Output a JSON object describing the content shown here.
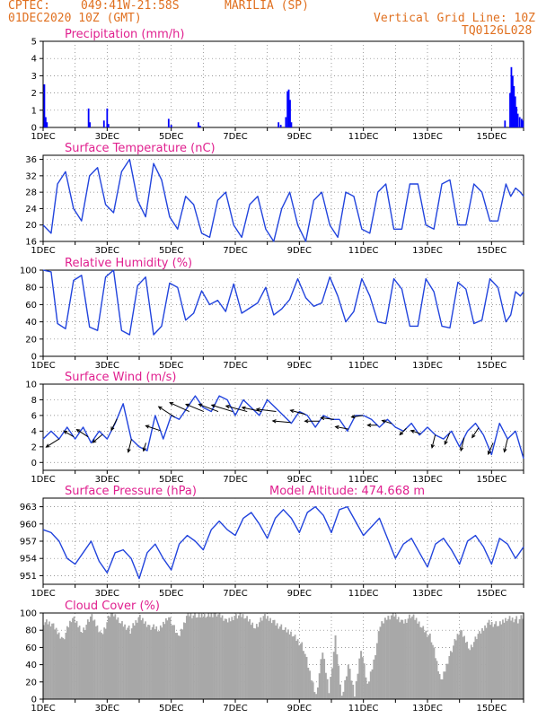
{
  "header": {
    "source": "CPTEC:",
    "coords": "049:41W-21:58S",
    "city": "MARILIA (SP)",
    "datetime": "01DEC2020 10Z (GMT)",
    "grid_line": "Vertical Grid Line: 10Z",
    "code": "TQ0126L028"
  },
  "chart_data": [
    {
      "id": "precip",
      "type": "bar",
      "title": "Precipitation (mm/h)",
      "ylim": [
        0,
        5
      ],
      "yticks": [
        0,
        1,
        2,
        3,
        4,
        5
      ],
      "xticks": [
        "1DEC",
        "3DEC",
        "5DEC",
        "7DEC",
        "9DEC",
        "11DEC",
        "13DEC",
        "15DEC"
      ],
      "x_range_days": [
        0,
        15.0
      ],
      "color": "#0000ff",
      "bars": [
        [
          0.04,
          2.5
        ],
        [
          0.08,
          0.6
        ],
        [
          0.12,
          0.3
        ],
        [
          1.42,
          1.1
        ],
        [
          1.46,
          0.3
        ],
        [
          1.9,
          0.4
        ],
        [
          2.0,
          1.1
        ],
        [
          2.04,
          0.2
        ],
        [
          3.92,
          0.5
        ],
        [
          4.0,
          0.15
        ],
        [
          4.85,
          0.3
        ],
        [
          4.9,
          0.1
        ],
        [
          7.35,
          0.3
        ],
        [
          7.42,
          0.15
        ],
        [
          7.58,
          0.6
        ],
        [
          7.63,
          2.1
        ],
        [
          7.67,
          2.2
        ],
        [
          7.71,
          1.6
        ],
        [
          7.75,
          0.3
        ],
        [
          14.42,
          0.4
        ],
        [
          14.58,
          2.0
        ],
        [
          14.62,
          3.5
        ],
        [
          14.66,
          3.0
        ],
        [
          14.7,
          2.4
        ],
        [
          14.74,
          1.8
        ],
        [
          14.78,
          1.2
        ],
        [
          14.82,
          0.8
        ],
        [
          14.88,
          0.6
        ],
        [
          14.94,
          0.5
        ],
        [
          14.98,
          0.4
        ]
      ]
    },
    {
      "id": "temp",
      "type": "line",
      "title": "Surface Temperature (nC)",
      "ylim": [
        16,
        37
      ],
      "yticks": [
        16,
        20,
        24,
        28,
        32,
        36
      ],
      "xticks": [
        "1DEC",
        "3DEC",
        "5DEC",
        "7DEC",
        "9DEC",
        "11DEC",
        "13DEC",
        "15DEC"
      ],
      "color": "#2244dd",
      "series": [
        {
          "x": [
            0,
            0.25,
            0.45,
            0.7,
            0.95,
            1.2,
            1.45,
            1.7,
            1.95,
            2.2,
            2.45,
            2.7,
            2.95,
            3.2,
            3.45,
            3.7,
            3.95,
            4.2,
            4.45,
            4.7,
            4.95,
            5.2,
            5.45,
            5.7,
            5.95,
            6.2,
            6.45,
            6.7,
            6.95,
            7.2,
            7.45,
            7.7,
            7.95,
            8.2,
            8.45,
            8.7,
            8.95,
            9.2,
            9.45,
            9.7,
            9.95,
            10.2,
            10.45,
            10.7,
            10.95,
            11.2,
            11.45,
            11.7,
            11.95,
            12.2,
            12.45,
            12.7,
            12.95,
            13.2,
            13.45,
            13.7,
            13.95,
            14.2,
            14.45,
            14.6,
            14.75,
            14.9,
            15.0
          ],
          "y": [
            20,
            18,
            30,
            33,
            24,
            21,
            32,
            34,
            25,
            23,
            33,
            36,
            26,
            22,
            35,
            31,
            22,
            19,
            27,
            25,
            18,
            17,
            26,
            28,
            20,
            17,
            25,
            27,
            19,
            16,
            24,
            28,
            20,
            16,
            26,
            28,
            20,
            17,
            28,
            27,
            19,
            18,
            28,
            30,
            19,
            19,
            30,
            30,
            20,
            19,
            30,
            31,
            20,
            20,
            30,
            28,
            21,
            21,
            30,
            27,
            29,
            28,
            27
          ]
        }
      ]
    },
    {
      "id": "rh",
      "type": "line",
      "title": "Relative Humidity (%)",
      "ylim": [
        0,
        100
      ],
      "yticks": [
        0,
        20,
        40,
        60,
        80,
        100
      ],
      "xticks": [
        "1DEC",
        "3DEC",
        "5DEC",
        "7DEC",
        "9DEC",
        "11DEC",
        "13DEC",
        "15DEC"
      ],
      "color": "#2244dd",
      "series": [
        {
          "x": [
            0,
            0.25,
            0.45,
            0.7,
            0.95,
            1.2,
            1.45,
            1.7,
            1.95,
            2.2,
            2.45,
            2.7,
            2.95,
            3.2,
            3.45,
            3.7,
            3.95,
            4.2,
            4.45,
            4.7,
            4.95,
            5.2,
            5.45,
            5.7,
            5.95,
            6.2,
            6.45,
            6.7,
            6.95,
            7.2,
            7.45,
            7.7,
            7.95,
            8.2,
            8.45,
            8.7,
            8.95,
            9.2,
            9.45,
            9.7,
            9.95,
            10.2,
            10.45,
            10.7,
            10.95,
            11.2,
            11.45,
            11.7,
            11.95,
            12.2,
            12.45,
            12.7,
            12.95,
            13.2,
            13.45,
            13.7,
            13.95,
            14.2,
            14.45,
            14.6,
            14.75,
            14.9,
            15.0
          ],
          "y": [
            100,
            98,
            38,
            32,
            88,
            94,
            34,
            30,
            92,
            100,
            30,
            25,
            82,
            92,
            25,
            35,
            85,
            80,
            42,
            50,
            76,
            60,
            65,
            52,
            84,
            50,
            56,
            62,
            80,
            48,
            55,
            66,
            90,
            68,
            58,
            62,
            92,
            70,
            40,
            52,
            90,
            70,
            40,
            38,
            90,
            78,
            35,
            35,
            90,
            75,
            35,
            33,
            86,
            78,
            38,
            42,
            90,
            80,
            40,
            48,
            75,
            70,
            75
          ]
        }
      ]
    },
    {
      "id": "wind",
      "type": "line",
      "title": "Surface Wind (m/s)",
      "ylim": [
        -1,
        10
      ],
      "yticks": [
        0,
        2,
        4,
        6,
        8,
        10
      ],
      "xticks": [
        "1DEC",
        "3DEC",
        "5DEC",
        "7DEC",
        "9DEC",
        "11DEC",
        "13DEC",
        "15DEC"
      ],
      "color": "#2244dd",
      "series": [
        {
          "x": [
            0,
            0.25,
            0.5,
            0.75,
            1.0,
            1.25,
            1.5,
            1.75,
            2.0,
            2.25,
            2.5,
            2.75,
            3.0,
            3.25,
            3.5,
            3.75,
            4.0,
            4.25,
            4.5,
            4.75,
            5.0,
            5.25,
            5.5,
            5.75,
            6.0,
            6.25,
            6.5,
            6.75,
            7.0,
            7.25,
            7.5,
            7.75,
            8.0,
            8.25,
            8.5,
            8.75,
            9.0,
            9.25,
            9.5,
            9.75,
            10.0,
            10.25,
            10.5,
            10.75,
            11.0,
            11.25,
            11.5,
            11.75,
            12.0,
            12.25,
            12.5,
            12.75,
            13.0,
            13.25,
            13.5,
            13.75,
            14.0,
            14.25,
            14.5,
            14.75,
            15.0
          ],
          "y": [
            3,
            4,
            3,
            4.5,
            3,
            4.5,
            2.5,
            4,
            3,
            5,
            7.5,
            3,
            2,
            1.5,
            6,
            3,
            6,
            5.5,
            7,
            8.5,
            7,
            6.5,
            8.5,
            8,
            6,
            8,
            7,
            6,
            8,
            7,
            6,
            5,
            6.5,
            6,
            4.5,
            6,
            5.5,
            5.5,
            4,
            6,
            6,
            5.5,
            4.5,
            5.5,
            4.5,
            4,
            5,
            3.5,
            4.5,
            3.5,
            3,
            4,
            2,
            4,
            5,
            3.5,
            1,
            5,
            3,
            4,
            0.5
          ]
        }
      ],
      "arrows_uv": [
        [
          -1.6,
          -1.0
        ],
        [
          -1.2,
          0.7
        ],
        [
          -1.4,
          0.9
        ],
        [
          -1.2,
          -1.0
        ],
        [
          -0.7,
          -1.4
        ],
        [
          -0.4,
          -1.6
        ],
        [
          -0.3,
          -1.0
        ],
        [
          -1.8,
          0.6
        ],
        [
          -2.0,
          1.3
        ],
        [
          -2.4,
          1.1
        ],
        [
          -2.2,
          0.9
        ],
        [
          -2.4,
          0.9
        ],
        [
          -2.6,
          0.8
        ],
        [
          -2.6,
          0.7
        ],
        [
          -2.4,
          0.5
        ],
        [
          -2.4,
          0.3
        ],
        [
          -2.2,
          0.2
        ],
        [
          -1.8,
          0.5
        ],
        [
          -1.8,
          0.0
        ],
        [
          -1.6,
          0.2
        ],
        [
          -1.6,
          0.3
        ],
        [
          -1.4,
          -0.2
        ],
        [
          -1.2,
          0.0
        ],
        [
          -1.2,
          0.4
        ],
        [
          -0.8,
          -0.8
        ],
        [
          -1.2,
          0.4
        ],
        [
          -0.4,
          -1.6
        ],
        [
          -0.6,
          -1.4
        ],
        [
          -0.4,
          -1.6
        ],
        [
          -0.8,
          -1.2
        ],
        [
          -0.6,
          -1.4
        ],
        [
          -0.4,
          -1.6
        ]
      ]
    },
    {
      "id": "pressure",
      "type": "line",
      "title": "Surface Pressure (hPa)",
      "annotation": "Model Altitude: 474.668 m",
      "ylim": [
        949.5,
        964.5
      ],
      "yticks": [
        951,
        954,
        957,
        960,
        963
      ],
      "xticks": [
        "1DEC",
        "3DEC",
        "5DEC",
        "7DEC",
        "9DEC",
        "11DEC",
        "13DEC",
        "15DEC"
      ],
      "color": "#2244dd",
      "series": [
        {
          "x": [
            0,
            0.25,
            0.5,
            0.75,
            1.0,
            1.25,
            1.5,
            1.75,
            2.0,
            2.25,
            2.5,
            2.75,
            3.0,
            3.25,
            3.5,
            3.75,
            4.0,
            4.25,
            4.5,
            4.75,
            5.0,
            5.25,
            5.5,
            5.75,
            6.0,
            6.25,
            6.5,
            6.75,
            7.0,
            7.25,
            7.5,
            7.75,
            8.0,
            8.25,
            8.5,
            8.75,
            9.0,
            9.25,
            9.5,
            9.75,
            10.0,
            10.25,
            10.5,
            10.75,
            11.0,
            11.25,
            11.5,
            11.75,
            12.0,
            12.25,
            12.5,
            12.75,
            13.0,
            13.25,
            13.5,
            13.75,
            14.0,
            14.25,
            14.5,
            14.75,
            15.0
          ],
          "y": [
            959,
            958.5,
            957,
            954,
            953,
            955,
            957,
            953.5,
            951.5,
            955,
            955.5,
            954,
            950.5,
            955,
            956.5,
            954,
            952,
            956.5,
            958,
            957,
            955.5,
            959,
            960.5,
            959,
            958,
            961,
            962,
            960,
            957.5,
            961,
            962.5,
            961,
            958.5,
            962,
            963,
            961.5,
            958.5,
            962.5,
            963,
            960.5,
            958,
            959.5,
            961,
            957.5,
            954,
            956.5,
            957.5,
            955,
            952.5,
            956.5,
            957.5,
            955.5,
            953,
            957,
            958,
            956,
            953,
            957.5,
            956.5,
            954,
            956
          ]
        }
      ]
    },
    {
      "id": "cloud",
      "type": "area",
      "title": "Cloud Cover (%)",
      "ylim": [
        0,
        100
      ],
      "yticks": [
        0,
        20,
        40,
        60,
        80,
        100
      ],
      "xticks": [
        "1DEC",
        "3DEC",
        "5DEC",
        "7DEC",
        "9DEC",
        "11DEC",
        "13DEC",
        "15DEC"
      ],
      "color": "#a8a8a8",
      "series": [
        {
          "x": [
            0,
            0.3,
            0.6,
            0.9,
            1.2,
            1.5,
            1.8,
            2.1,
            2.4,
            2.7,
            3.0,
            3.3,
            3.6,
            3.9,
            4.2,
            4.5,
            4.8,
            5.1,
            5.4,
            5.7,
            6.0,
            6.3,
            6.6,
            6.9,
            7.2,
            7.5,
            7.8,
            8.1,
            8.3,
            8.5,
            8.7,
            8.9,
            9.1,
            9.3,
            9.5,
            9.7,
            9.9,
            10.1,
            10.3,
            10.5,
            10.7,
            10.9,
            11.2,
            11.5,
            11.8,
            12.1,
            12.4,
            12.7,
            13.0,
            13.3,
            13.6,
            13.9,
            14.2,
            14.5,
            14.8,
            15.0
          ],
          "y": [
            90,
            85,
            70,
            95,
            80,
            95,
            75,
            100,
            90,
            80,
            95,
            85,
            80,
            98,
            70,
            100,
            95,
            98,
            100,
            90,
            98,
            95,
            85,
            95,
            90,
            80,
            75,
            60,
            30,
            5,
            55,
            10,
            70,
            2,
            40,
            5,
            60,
            15,
            45,
            85,
            95,
            98,
            90,
            96,
            85,
            70,
            20,
            55,
            80,
            60,
            75,
            90,
            85,
            95,
            92,
            95
          ]
        }
      ]
    }
  ]
}
